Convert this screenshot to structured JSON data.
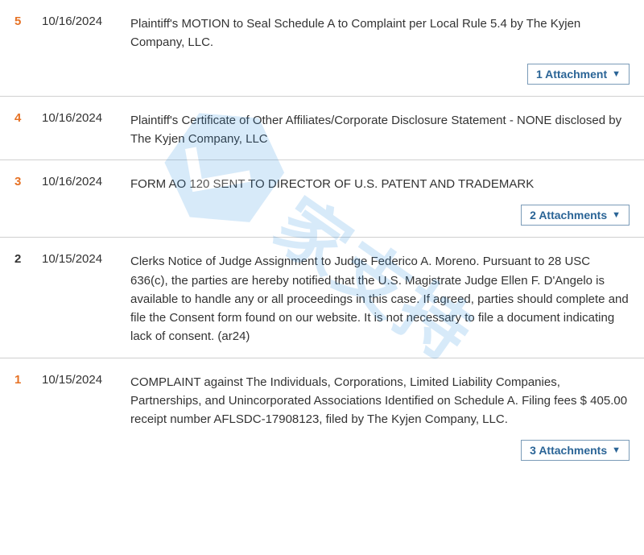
{
  "colors": {
    "number_highlight": "#e67225",
    "number_plain": "#333333",
    "text": "#333333",
    "row_border": "#d0d0d0",
    "attachment_border": "#7a9bb8",
    "attachment_text": "#2a6496",
    "watermark": "#2a8de0",
    "background": "#ffffff"
  },
  "typography": {
    "body_fontsize": 15,
    "attachment_fontsize": 14,
    "watermark_fontsize": 88,
    "line_height": 1.55
  },
  "watermark": {
    "text": "家支持",
    "rotation_deg": 35,
    "opacity": 0.18
  },
  "rows": [
    {
      "number": "5",
      "number_color": "orange",
      "date": "10/16/2024",
      "description": "Plaintiff's MOTION to Seal Schedule A to Complaint per Local Rule 5.4 by The Kyjen Company, LLC.",
      "attachment_label": "1 Attachment",
      "has_attachment": true
    },
    {
      "number": "4",
      "number_color": "orange",
      "date": "10/16/2024",
      "description": "Plaintiff's Certificate of Other Affiliates/Corporate Disclosure Statement - NONE disclosed by The Kyjen Company, LLC",
      "has_attachment": false
    },
    {
      "number": "3",
      "number_color": "orange",
      "date": "10/16/2024",
      "description": "FORM AO 120 SENT TO DIRECTOR OF U.S. PATENT AND TRADEMARK",
      "attachment_label": "2 Attachments",
      "has_attachment": true
    },
    {
      "number": "2",
      "number_color": "dark",
      "date": "10/15/2024",
      "description": "Clerks Notice of Judge Assignment to Judge Federico A. Moreno. Pursuant to 28 USC 636(c), the parties are hereby notified that the U.S. Magistrate Judge Ellen F. D'Angelo is available to handle any or all proceedings in this case. If agreed, parties should complete and file the Consent form found on our website. It is not necessary to file a document indicating lack of consent. (ar24)",
      "has_attachment": false
    },
    {
      "number": "1",
      "number_color": "orange",
      "date": "10/15/2024",
      "description": "COMPLAINT against The Individuals, Corporations, Limited Liability Companies, Partnerships, and Unincorporated Associations Identified on Schedule A. Filing fees $ 405.00 receipt number AFLSDC-17908123, filed by The Kyjen Company, LLC.",
      "attachment_label": "3 Attachments",
      "has_attachment": true
    }
  ]
}
